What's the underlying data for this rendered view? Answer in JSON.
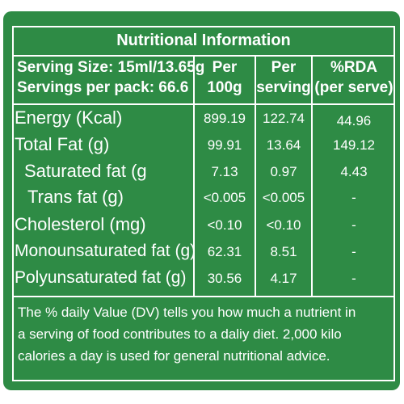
{
  "title": "Nutritional Information",
  "serving_size": "Serving Size: 15ml/13.65g",
  "servings_per_pack": "Servings per pack: 66.6",
  "columns": {
    "per100_line1": "Per",
    "per100_line2": "100g",
    "perserv_line1": "Per",
    "perserv_line2": "serving",
    "rda_line1": "%RDA",
    "rda_line2": "(per serve)"
  },
  "rows": [
    {
      "name": "Energy (Kcal)",
      "per_100g": "899.19",
      "per_serving": "122.74",
      "rda": "44.96"
    },
    {
      "name": "Total Fat (g)",
      "per_100g": "99.91",
      "per_serving": "13.64",
      "rda": "149.12"
    },
    {
      "name": "Saturated fat (g",
      "per_100g": "7.13",
      "per_serving": "0.97",
      "rda": "4.43"
    },
    {
      "name": "Trans fat (g)",
      "per_100g": "<0.005",
      "per_serving": "<0.005",
      "rda": "-"
    },
    {
      "name": "Cholesterol (mg)",
      "per_100g": "<0.10",
      "per_serving": "<0.10",
      "rda": "-"
    },
    {
      "name": "Monounsaturated fat (g)",
      "per_100g": "62.31",
      "per_serving": "8.51",
      "rda": "-"
    },
    {
      "name": "Polyunsaturated fat (g)",
      "per_100g": "30.56",
      "per_serving": "4.17",
      "rda": "-"
    }
  ],
  "footnote": {
    "line1": "The % daily Value (DV) tells you how much a nutrient in",
    "line2": "a serving of food contributes to a daliy diet. 2,000 kilo",
    "line3": "calories a day is used for general nutritional advice."
  },
  "colors": {
    "background": "#2e8b45",
    "text": "#ffffff"
  }
}
